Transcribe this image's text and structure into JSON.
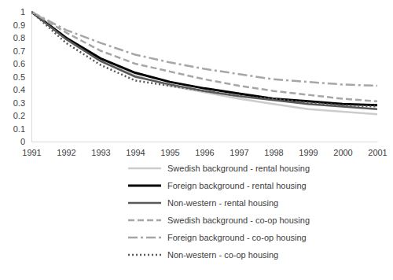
{
  "chart_data": {
    "type": "line",
    "x": [
      1991,
      1992,
      1993,
      1994,
      1995,
      1996,
      1997,
      1998,
      1999,
      2000,
      2001
    ],
    "xlim": [
      1991,
      2001
    ],
    "xticks": [
      1991,
      1992,
      1993,
      1994,
      1995,
      1996,
      1997,
      1998,
      1999,
      2000,
      2001
    ],
    "ylim": [
      0,
      1
    ],
    "yticks": [
      0,
      0.1,
      0.2,
      0.3,
      0.4,
      0.5,
      0.6,
      0.7,
      0.8,
      0.9,
      1
    ],
    "grid": false,
    "legend": "bottom",
    "series": [
      {
        "name": "Swedish background - rental housing",
        "color": "#cccccc",
        "line_style": "solid",
        "values": [
          1,
          0.79,
          0.62,
          0.51,
          0.43,
          0.38,
          0.33,
          0.29,
          0.25,
          0.23,
          0.21
        ]
      },
      {
        "name": "Foreign background - rental housing",
        "color": "#000000",
        "line_style": "solid",
        "values": [
          1,
          0.8,
          0.64,
          0.53,
          0.46,
          0.41,
          0.37,
          0.33,
          0.31,
          0.29,
          0.28
        ]
      },
      {
        "name": "Non-western - rental housing",
        "color": "#595959",
        "line_style": "solid",
        "values": [
          1,
          0.79,
          0.62,
          0.5,
          0.44,
          0.39,
          0.35,
          0.32,
          0.29,
          0.27,
          0.25
        ]
      },
      {
        "name": "Swedish background - co-op housing",
        "color": "#a6a6a6",
        "line_style": "dashed",
        "values": [
          1,
          0.84,
          0.7,
          0.6,
          0.54,
          0.48,
          0.43,
          0.39,
          0.36,
          0.33,
          0.31
        ]
      },
      {
        "name": "Foreign background - co-op housing",
        "color": "#a6a6a6",
        "line_style": "dashdot",
        "values": [
          1,
          0.86,
          0.76,
          0.67,
          0.61,
          0.56,
          0.52,
          0.48,
          0.46,
          0.44,
          0.43
        ]
      },
      {
        "name": "Non-western - co-op housing",
        "color": "#595959",
        "line_style": "dotted",
        "values": [
          1,
          0.76,
          0.59,
          0.47,
          0.43,
          0.39,
          0.35,
          0.33,
          0.3,
          0.28,
          0.27
        ]
      }
    ]
  }
}
